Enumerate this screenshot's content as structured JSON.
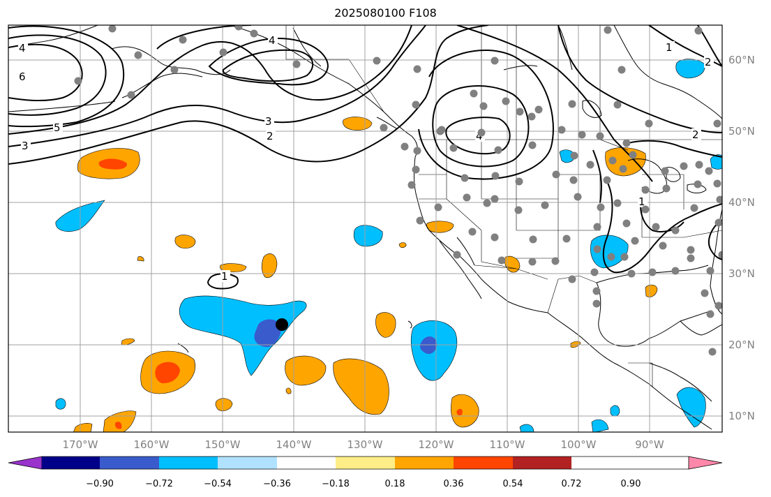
{
  "title": "2025080100 F108",
  "lon_ticks": [
    "170°W",
    "160°W",
    "150°W",
    "140°W",
    "130°W",
    "120°W",
    "110°W",
    "100°W",
    "90°W"
  ],
  "lat_ticks": [
    "60°N",
    "50°N",
    "40°N",
    "30°N",
    "20°N",
    "10°N"
  ],
  "colorbar": {
    "colors": [
      "#9933cc",
      "#000088",
      "#3a5bcc",
      "#00bfff",
      "#b0e2ff",
      "#ffffff",
      "#ffee88",
      "#ffa500",
      "#ff4500",
      "#b22222",
      "#ff88aa"
    ],
    "tick_labels": [
      "−0.90",
      "−0.72",
      "−0.54",
      "−0.36",
      "−0.18",
      "0.18",
      "0.36",
      "0.54",
      "0.72",
      "0.90"
    ]
  },
  "contour_labels": [
    "4",
    "6",
    "5",
    "3",
    "4",
    "3",
    "2",
    "1",
    "4",
    "2",
    "1",
    "2",
    "1"
  ],
  "colors": {
    "station": "#808080",
    "marker": "#000000",
    "grid": "#a0a0a0",
    "coast": "#000000"
  }
}
